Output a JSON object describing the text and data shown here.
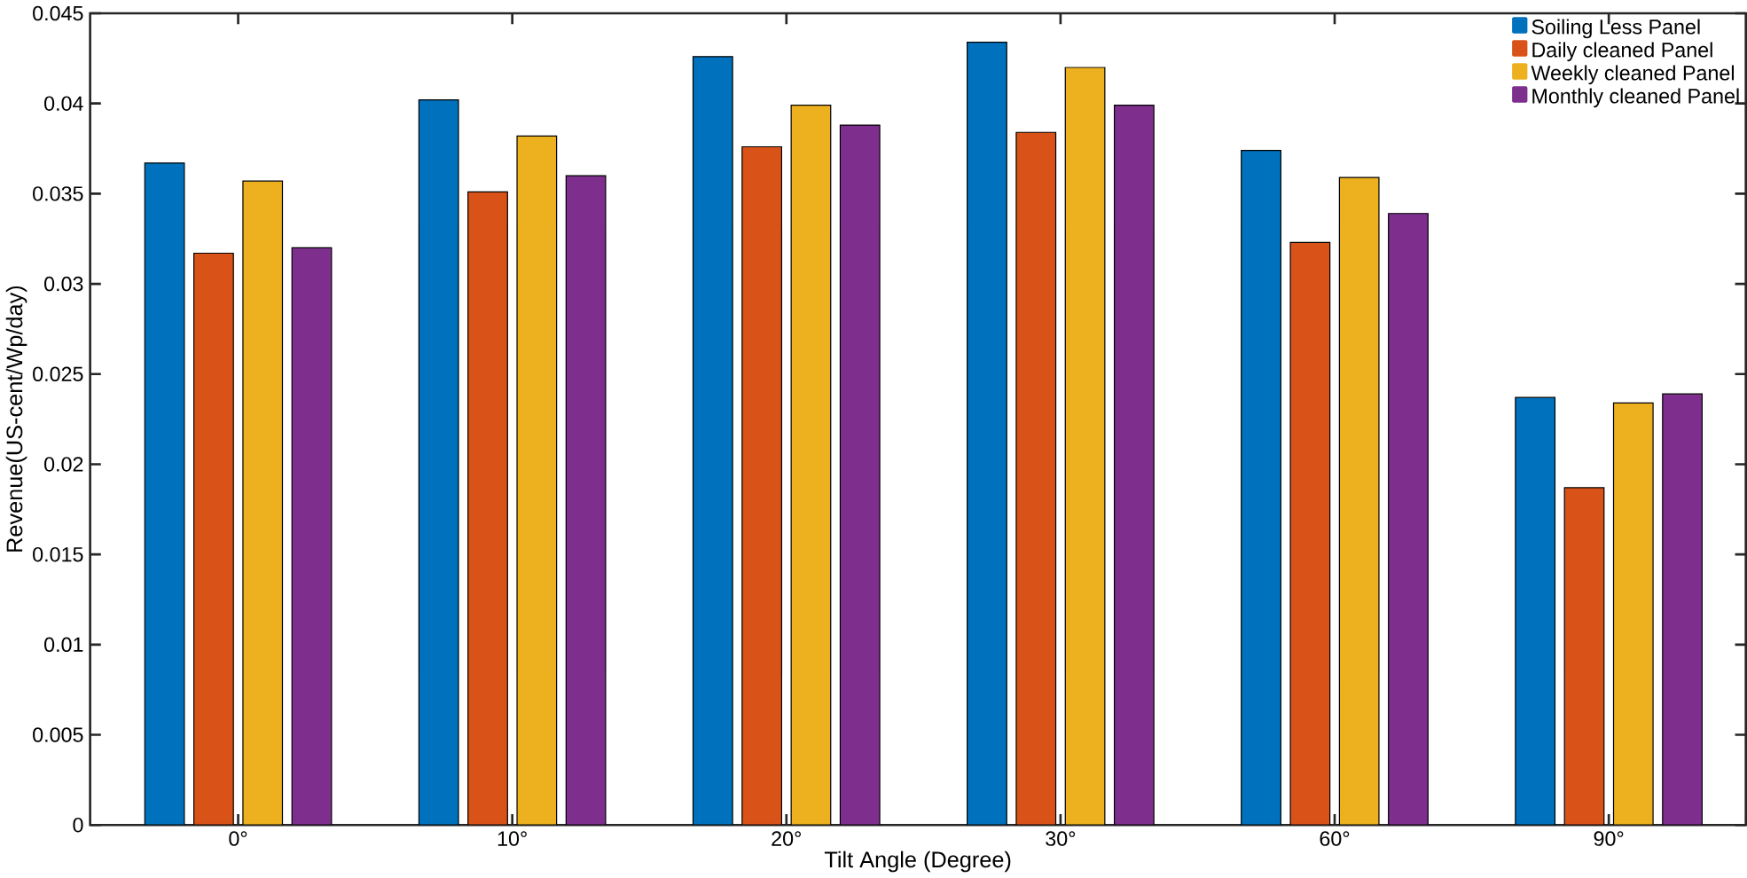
{
  "chart_data": {
    "type": "bar",
    "xlabel": "Tilt Angle (Degree)",
    "ylabel": "Revenue(US-cent/Wp/day)",
    "categories": [
      "0°",
      "10°",
      "20°",
      "30°",
      "60°",
      "90°"
    ],
    "series": [
      {
        "name": "Soiling Less Panel",
        "color": "#0072bd",
        "values": [
          0.0367,
          0.0402,
          0.0426,
          0.0434,
          0.0374,
          0.0237
        ]
      },
      {
        "name": "Daily cleaned Panel",
        "color": "#d95319",
        "values": [
          0.0317,
          0.0351,
          0.0376,
          0.0384,
          0.0323,
          0.0187
        ]
      },
      {
        "name": "Weekly cleaned Panel",
        "color": "#edb120",
        "values": [
          0.0357,
          0.0382,
          0.0399,
          0.042,
          0.0359,
          0.0234
        ]
      },
      {
        "name": "Monthly cleaned Panel",
        "color": "#7e2f8e",
        "values": [
          0.032,
          0.036,
          0.0388,
          0.0399,
          0.0339,
          0.0239
        ]
      }
    ],
    "ylim": [
      0,
      0.045
    ],
    "yticks": [
      0,
      0.005,
      0.01,
      0.015,
      0.02,
      0.025,
      0.03,
      0.035,
      0.04,
      0.045
    ],
    "grid": false,
    "legend": "top right"
  }
}
